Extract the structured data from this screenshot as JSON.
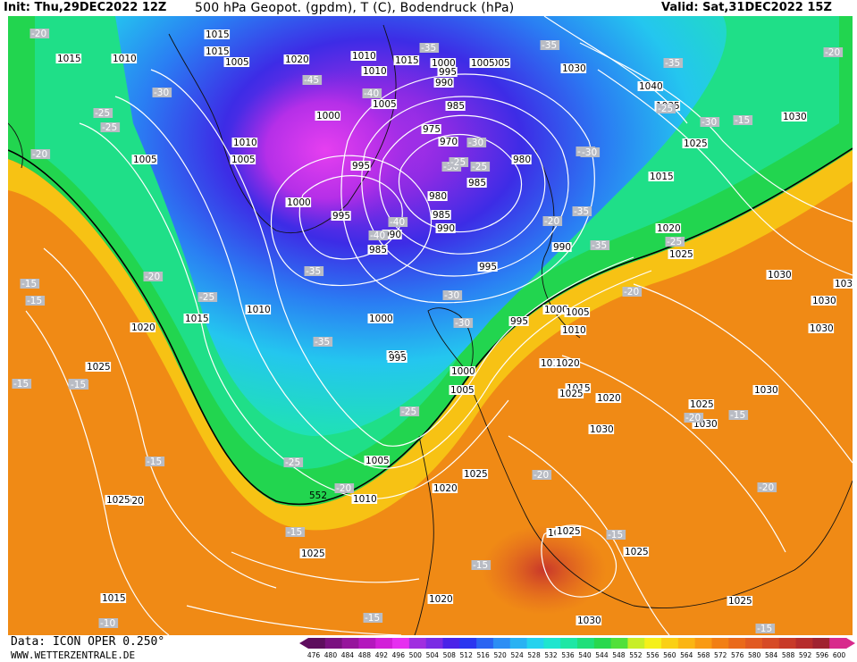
{
  "header": {
    "init": "Init: Thu,29DEC2022 12Z",
    "title": "500 hPa Geopot. (gpdm), T (C), Bodendruck (hPa)",
    "valid": "Valid: Sat,31DEC2022 15Z"
  },
  "footer": {
    "data": "Data: ICON OPER 0.250°",
    "site": "WWW.WETTERZENTRALE.DE"
  },
  "colorbar": {
    "ticks": [
      "476",
      "480",
      "484",
      "488",
      "492",
      "496",
      "500",
      "504",
      "508",
      "512",
      "516",
      "520",
      "524",
      "528",
      "532",
      "536",
      "540",
      "544",
      "548",
      "552",
      "556",
      "560",
      "564",
      "568",
      "572",
      "576",
      "580",
      "584",
      "588",
      "592",
      "596",
      "600"
    ],
    "colors": [
      "#5e0d5e",
      "#7a1080",
      "#96149c",
      "#b418bd",
      "#d21fd8",
      "#e62ff0",
      "#a02ee0",
      "#7a2be4",
      "#4a22e8",
      "#2a36f0",
      "#2a64f2",
      "#2c8ef4",
      "#29b2f3",
      "#25d2ee",
      "#1fe5cf",
      "#1ee7a5",
      "#1fdf7a",
      "#28d84e",
      "#52e03a",
      "#c8ee28",
      "#f5f01a",
      "#fad015",
      "#fbb514",
      "#f99a14",
      "#f27f14",
      "#ea6a1a",
      "#e15a22",
      "#d64a26",
      "#c83a28",
      "#b62c2c",
      "#a02230",
      "#d82a8c"
    ]
  },
  "map": {
    "pressure_labels": [
      {
        "t": "1015"
      },
      {
        "t": "1015"
      },
      {
        "t": "1010"
      },
      {
        "t": "1015"
      },
      {
        "t": "1020"
      },
      {
        "t": "1010"
      },
      {
        "t": "1015"
      },
      {
        "t": "1000"
      },
      {
        "t": "995"
      },
      {
        "t": "990"
      },
      {
        "t": "1005"
      },
      {
        "t": "1010"
      },
      {
        "t": "1005"
      },
      {
        "t": "1030"
      },
      {
        "t": "1040"
      },
      {
        "t": "1035"
      },
      {
        "t": "1030"
      },
      {
        "t": "1025"
      },
      {
        "t": "1015"
      },
      {
        "t": "1020"
      },
      {
        "t": "1025"
      },
      {
        "t": "1030"
      },
      {
        "t": "1030"
      },
      {
        "t": "1005"
      },
      {
        "t": "985"
      },
      {
        "t": "975"
      },
      {
        "t": "970"
      },
      {
        "t": "980"
      },
      {
        "t": "985"
      },
      {
        "t": "980"
      },
      {
        "t": "985"
      },
      {
        "t": "990"
      },
      {
        "t": "1000"
      },
      {
        "t": "1010"
      },
      {
        "t": "1005"
      },
      {
        "t": "1005"
      },
      {
        "t": "995"
      },
      {
        "t": "1000"
      },
      {
        "t": "995"
      },
      {
        "t": "990"
      },
      {
        "t": "985"
      },
      {
        "t": "1005"
      },
      {
        "t": "1010"
      },
      {
        "t": "1015"
      },
      {
        "t": "1020"
      },
      {
        "t": "1025"
      },
      {
        "t": "1000"
      },
      {
        "t": "995"
      },
      {
        "t": "995"
      },
      {
        "t": "1000"
      },
      {
        "t": "995"
      },
      {
        "t": "1005"
      },
      {
        "t": "1010"
      },
      {
        "t": "1025"
      },
      {
        "t": "1020"
      },
      {
        "t": "1015"
      },
      {
        "t": "1020"
      },
      {
        "t": "1010"
      },
      {
        "t": "1005"
      },
      {
        "t": "1015"
      },
      {
        "t": "1020"
      },
      {
        "t": "1025"
      },
      {
        "t": "1030"
      },
      {
        "t": "1030"
      },
      {
        "t": "1030"
      },
      {
        "t": "1030"
      },
      {
        "t": "1030"
      },
      {
        "t": "1025"
      },
      {
        "t": "1030"
      },
      {
        "t": "1025"
      },
      {
        "t": "1025"
      },
      {
        "t": "1020"
      },
      {
        "t": "1025"
      },
      {
        "t": "1015"
      },
      {
        "t": "1020"
      },
      {
        "t": "1030"
      },
      {
        "t": "1025"
      },
      {
        "t": "1025"
      },
      {
        "t": "1005"
      },
      {
        "t": "1000"
      },
      {
        "t": "995"
      },
      {
        "t": "990"
      }
    ],
    "temp_labels": [
      {
        "t": "-20"
      },
      {
        "t": "-25"
      },
      {
        "t": "-30"
      },
      {
        "t": "-20"
      },
      {
        "t": "-45"
      },
      {
        "t": "-40"
      },
      {
        "t": "-35"
      },
      {
        "t": "-30"
      },
      {
        "t": "-35"
      },
      {
        "t": "-40"
      },
      {
        "t": "-35"
      },
      {
        "t": "-30"
      },
      {
        "t": "-35"
      },
      {
        "t": "-30"
      },
      {
        "t": "-25"
      },
      {
        "t": "-40"
      },
      {
        "t": "-35"
      },
      {
        "t": "-30"
      },
      {
        "t": "-25"
      },
      {
        "t": "-20"
      },
      {
        "t": "-15"
      },
      {
        "t": "-20"
      },
      {
        "t": "-25"
      },
      {
        "t": "-35"
      },
      {
        "t": "-35"
      },
      {
        "t": "-35"
      },
      {
        "t": "-30"
      },
      {
        "t": "-25"
      },
      {
        "t": "-20"
      },
      {
        "t": "-15"
      },
      {
        "t": "-15"
      },
      {
        "t": "-15"
      },
      {
        "t": "-15"
      },
      {
        "t": "-15"
      },
      {
        "t": "-15"
      },
      {
        "t": "-15"
      },
      {
        "t": "-10"
      },
      {
        "t": "-15"
      },
      {
        "t": "-15"
      },
      {
        "t": "-20"
      },
      {
        "t": "-20"
      },
      {
        "t": "-15"
      },
      {
        "t": "-15"
      },
      {
        "t": "-20"
      },
      {
        "t": "-20"
      },
      {
        "t": "-15"
      },
      {
        "t": "-25"
      },
      {
        "t": "-20"
      },
      {
        "t": "-30"
      },
      {
        "t": "-25"
      },
      {
        "t": "-25"
      },
      {
        "t": "-25"
      }
    ],
    "height_label": "552"
  }
}
